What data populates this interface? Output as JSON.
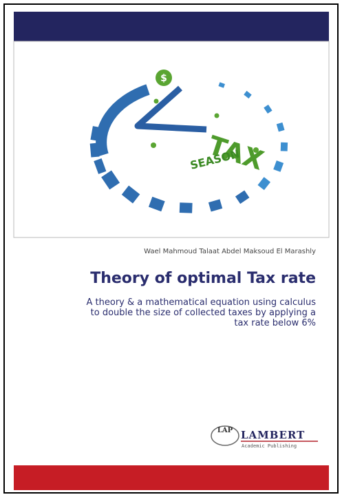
{
  "author": "Wael Mahmoud Talaat Abdel Maksoud El Marashly",
  "title": "Theory of optimal Tax rate",
  "subtitle": [
    "A theory & a mathematical equation using calculus",
    "to double the size of collected taxes by applying a",
    "tax rate below 6%"
  ],
  "art": {
    "dollar": "$",
    "tax": "TAX",
    "season": "SEASON"
  },
  "publisher": {
    "mark": "LAP",
    "name": "LAMBERT",
    "tagline": "Academic Publishing"
  }
}
